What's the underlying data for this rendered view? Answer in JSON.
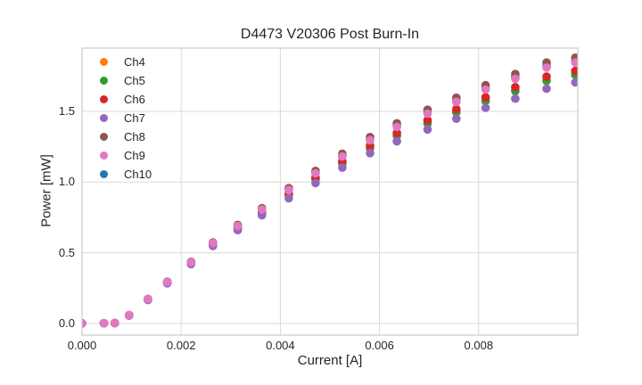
{
  "chart_data": {
    "type": "scatter",
    "title": "D4473 V20306 Post Burn-In",
    "xlabel": "Current [A]",
    "ylabel": "Power [mW]",
    "xlim": [
      0.0,
      0.01
    ],
    "ylim": [
      -0.082,
      1.947
    ],
    "grid": true,
    "grid_color": "#d9d9d9",
    "frame_color": "#cbcbcb",
    "text_color": "#262626",
    "legend_position": "upper left",
    "xticks": {
      "values": [
        0.0,
        0.002,
        0.004,
        0.006,
        0.008
      ],
      "labels": [
        "0.000",
        "0.002",
        "0.004",
        "0.006",
        "0.008"
      ]
    },
    "yticks": {
      "values": [
        0.0,
        0.5,
        1.0,
        1.5
      ],
      "labels": [
        "0.0",
        "0.5",
        "1.0",
        "1.5"
      ]
    },
    "x": [
      0.0,
      0.00044,
      0.00066,
      0.00095,
      0.00133,
      0.00172,
      0.0022,
      0.00264,
      0.00314,
      0.00363,
      0.00417,
      0.00471,
      0.00525,
      0.00581,
      0.00635,
      0.00697,
      0.00755,
      0.00814,
      0.00874,
      0.00937,
      0.00995
    ],
    "series": [
      {
        "name": "Ch4",
        "color": "#ff7f0e",
        "values": [
          0.001,
          0.002,
          0.003,
          0.057,
          0.169,
          0.288,
          0.426,
          0.556,
          0.673,
          0.783,
          0.91,
          1.022,
          1.136,
          1.244,
          1.331,
          1.42,
          1.498,
          1.58,
          1.65,
          1.723,
          1.765
        ]
      },
      {
        "name": "Ch5",
        "color": "#2ca02c",
        "values": [
          0.001,
          0.002,
          0.003,
          0.057,
          0.168,
          0.288,
          0.425,
          0.555,
          0.671,
          0.781,
          0.907,
          1.019,
          1.132,
          1.239,
          1.326,
          1.414,
          1.493,
          1.573,
          1.643,
          1.716,
          1.758
        ]
      },
      {
        "name": "Ch6",
        "color": "#d62728",
        "values": [
          0.001,
          0.002,
          0.003,
          0.058,
          0.17,
          0.29,
          0.428,
          0.559,
          0.677,
          0.789,
          0.918,
          1.033,
          1.148,
          1.257,
          1.347,
          1.437,
          1.516,
          1.599,
          1.671,
          1.746,
          1.786
        ]
      },
      {
        "name": "Ch7",
        "color": "#9467bd",
        "values": [
          0.001,
          0.002,
          0.003,
          0.056,
          0.166,
          0.284,
          0.42,
          0.548,
          0.66,
          0.765,
          0.885,
          0.993,
          1.102,
          1.205,
          1.288,
          1.372,
          1.448,
          1.525,
          1.59,
          1.66,
          1.705
        ]
      },
      {
        "name": "Ch8",
        "color": "#8c564b",
        "values": [
          0.001,
          0.002,
          0.003,
          0.06,
          0.174,
          0.296,
          0.436,
          0.573,
          0.697,
          0.816,
          0.957,
          1.079,
          1.2,
          1.318,
          1.415,
          1.511,
          1.596,
          1.685,
          1.764,
          1.845,
          1.879
        ]
      },
      {
        "name": "Ch9",
        "color": "#e377c2",
        "values": [
          0.001,
          0.002,
          0.003,
          0.059,
          0.173,
          0.294,
          0.433,
          0.568,
          0.69,
          0.806,
          0.943,
          1.062,
          1.181,
          1.296,
          1.39,
          1.484,
          1.567,
          1.654,
          1.73,
          1.809,
          1.845
        ]
      },
      {
        "name": "Ch10",
        "color": "#1f77b4",
        "values": [
          0.001,
          0.002,
          0.003,
          0.06,
          0.173,
          0.295,
          0.434,
          0.569,
          0.692,
          0.81,
          0.947,
          1.068,
          1.187,
          1.303,
          1.398,
          1.493,
          1.576,
          1.664,
          1.741,
          1.82,
          1.856
        ]
      }
    ],
    "draw_order": [
      "Ch10",
      "Ch4",
      "Ch5",
      "Ch8",
      "Ch6",
      "Ch7",
      "Ch9"
    ],
    "marker_radius_px": 4.8
  }
}
